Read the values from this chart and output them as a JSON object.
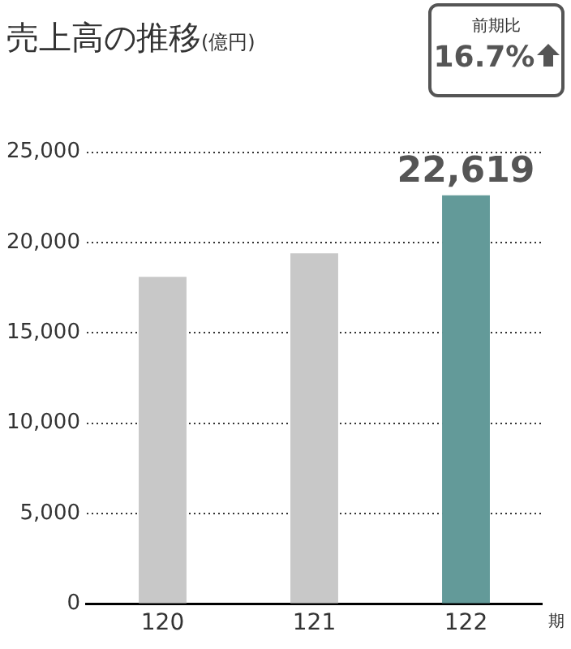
{
  "chart_data": {
    "type": "bar",
    "title": "売上高の推移",
    "subtitle": "(億円)",
    "xlabel": "期",
    "annotations": [
      "前期比",
      "16.7%"
    ],
    "categories": [
      "120",
      "121",
      "122"
    ],
    "values": [
      18100,
      19400,
      22619
    ],
    "colors": [
      "#c8c8c8",
      "#c8c8c8",
      "#639a99"
    ],
    "value_labels": [
      null,
      null,
      "22,619"
    ],
    "ylim": [
      0,
      25000
    ],
    "yticks": [
      {
        "value": 0,
        "label": "0"
      },
      {
        "value": 5000,
        "label": "5,000"
      },
      {
        "value": 10000,
        "label": "10,000"
      },
      {
        "value": 15000,
        "label": "15,000"
      },
      {
        "value": 20000,
        "label": "20,000"
      },
      {
        "value": 25000,
        "label": "25,000"
      }
    ],
    "grid": "y"
  }
}
